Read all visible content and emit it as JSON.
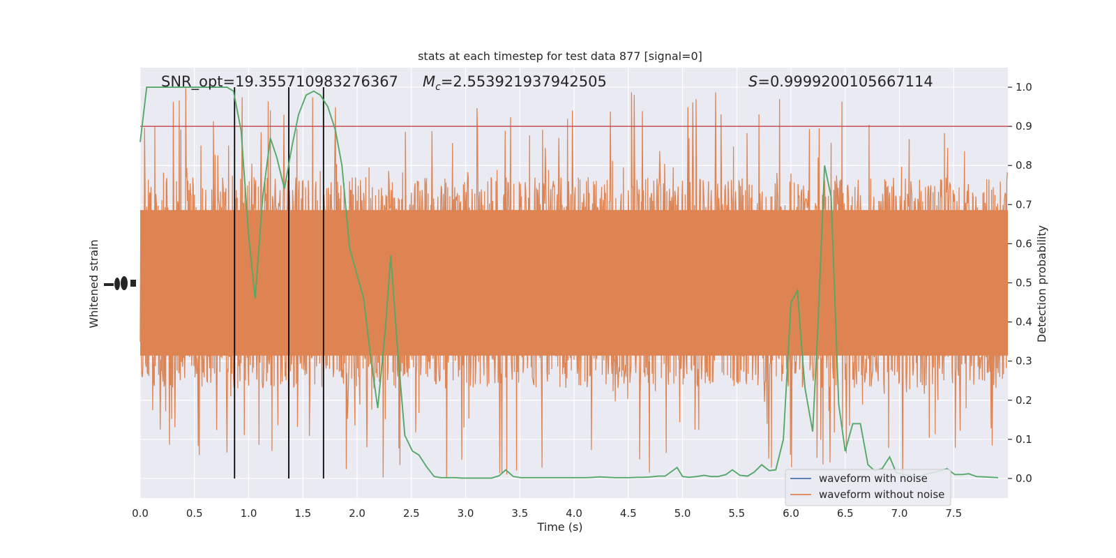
{
  "chart_data": {
    "type": "line",
    "title": "stats at each timestep for test data 877 [signal=0]",
    "xlabel": "Time (s)",
    "ylabel_left": "Whitened strain",
    "ylabel_right": "Detection probability",
    "xlim": [
      0.0,
      8.0
    ],
    "ylim_right": [
      -0.05,
      1.05
    ],
    "x_ticks": [
      "0.0",
      "0.5",
      "1.0",
      "1.5",
      "2.0",
      "2.5",
      "3.0",
      "3.5",
      "4.0",
      "4.5",
      "5.0",
      "5.5",
      "6.0",
      "6.5",
      "7.0",
      "7.5"
    ],
    "y_ticks_right": [
      "0.0",
      "0.1",
      "0.2",
      "0.3",
      "0.4",
      "0.5",
      "0.6",
      "0.7",
      "0.8",
      "0.9",
      "1.0"
    ],
    "annotations": {
      "snr": "SNR_opt=19.355710983276367",
      "mc_symbol": "M",
      "mc_sub": "c",
      "mc_value": "=2.553921937942505",
      "s_symbol": "S",
      "s_value": "=0.9999200105667114"
    },
    "threshold": 0.9,
    "vertical_markers": [
      0.87,
      1.37,
      1.69
    ],
    "noise_band": {
      "center": 0.5,
      "dense_low": 0.3,
      "dense_high": 0.7,
      "spike_low": 0.0,
      "spike_high": 1.0
    },
    "series": [
      {
        "name": "waveform with noise",
        "color": "#4c72b0"
      },
      {
        "name": "waveform without noise",
        "color": "#dd8452"
      },
      {
        "color": "#55a868",
        "x": [
          0.0,
          0.06,
          0.13,
          0.2,
          0.26,
          0.33,
          0.4,
          0.47,
          0.53,
          0.6,
          0.66,
          0.73,
          0.8,
          0.86,
          0.93,
          1.0,
          1.06,
          1.13,
          1.2,
          1.26,
          1.33,
          1.4,
          1.46,
          1.53,
          1.6,
          1.66,
          1.73,
          1.8,
          1.86,
          1.93,
          2.0,
          2.06,
          2.13,
          2.19,
          2.26,
          2.31,
          2.37,
          2.44,
          2.51,
          2.57,
          2.64,
          2.71,
          2.77,
          2.84,
          2.9,
          2.97,
          3.04,
          3.11,
          3.17,
          3.24,
          3.31,
          3.37,
          3.44,
          3.51,
          3.57,
          3.64,
          3.71,
          3.77,
          3.84,
          3.91,
          3.98,
          4.04,
          4.11,
          4.18,
          4.24,
          4.31,
          4.38,
          4.44,
          4.51,
          4.58,
          4.64,
          4.71,
          4.78,
          4.84,
          4.91,
          4.95,
          5.0,
          5.06,
          5.13,
          5.2,
          5.26,
          5.33,
          5.4,
          5.46,
          5.53,
          5.6,
          5.66,
          5.73,
          5.8,
          5.86,
          5.93,
          6.0,
          6.06,
          6.1,
          6.13,
          6.2,
          6.25,
          6.31,
          6.37,
          6.44,
          6.5,
          6.57,
          6.64,
          6.71,
          6.77,
          6.84,
          6.91,
          6.97,
          7.04,
          7.11,
          7.18,
          7.24,
          7.31,
          7.38,
          7.44,
          7.51,
          7.58,
          7.64,
          7.71,
          7.78,
          7.85,
          7.91
        ],
        "y": [
          0.86,
          1.0,
          1.0,
          1.0,
          1.0,
          1.0,
          1.0,
          1.0,
          1.0,
          1.0,
          1.0,
          1.0,
          1.0,
          0.99,
          0.89,
          0.62,
          0.46,
          0.72,
          0.87,
          0.82,
          0.74,
          0.85,
          0.93,
          0.98,
          0.99,
          0.98,
          0.95,
          0.89,
          0.8,
          0.59,
          0.52,
          0.46,
          0.3,
          0.18,
          0.38,
          0.57,
          0.34,
          0.11,
          0.07,
          0.06,
          0.03,
          0.005,
          0.002,
          0.002,
          0.002,
          0.001,
          0.001,
          0.001,
          0.001,
          0.001,
          0.007,
          0.022,
          0.005,
          0.002,
          0.002,
          0.002,
          0.002,
          0.002,
          0.002,
          0.002,
          0.002,
          0.002,
          0.002,
          0.003,
          0.004,
          0.003,
          0.002,
          0.002,
          0.002,
          0.003,
          0.003,
          0.004,
          0.006,
          0.006,
          0.02,
          0.028,
          0.005,
          0.003,
          0.005,
          0.008,
          0.005,
          0.005,
          0.01,
          0.022,
          0.008,
          0.006,
          0.016,
          0.035,
          0.02,
          0.022,
          0.1,
          0.45,
          0.48,
          0.33,
          0.23,
          0.12,
          0.4,
          0.8,
          0.72,
          0.19,
          0.07,
          0.14,
          0.14,
          0.035,
          0.02,
          0.025,
          0.055,
          0.015,
          0.01,
          0.006,
          0.005,
          0.01,
          0.015,
          0.02,
          0.025,
          0.01,
          0.01,
          0.012,
          0.005,
          0.004,
          0.003,
          0.002
        ]
      }
    ],
    "legend_position": "lower-right",
    "grid": true
  }
}
